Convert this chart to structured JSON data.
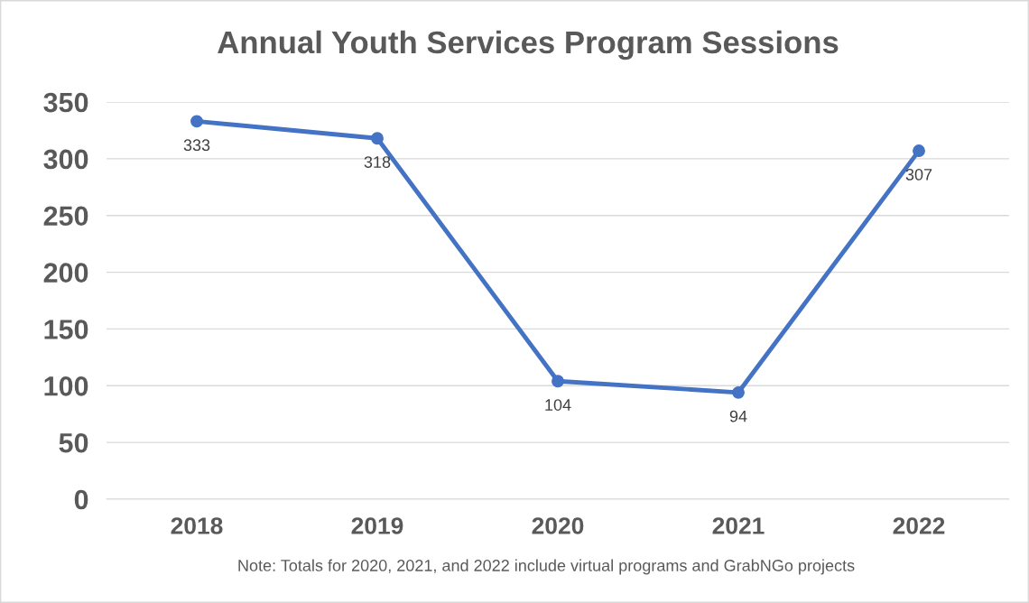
{
  "chart_data": {
    "type": "line",
    "title": "Annual Youth Services Program Sessions",
    "categories": [
      "2018",
      "2019",
      "2020",
      "2021",
      "2022"
    ],
    "series": [
      {
        "color": "#4472c4",
        "values": [
          333,
          318,
          104,
          94,
          307
        ]
      }
    ],
    "ylim": [
      0,
      350
    ],
    "yticks": [
      0,
      50,
      100,
      150,
      200,
      250,
      300,
      350
    ],
    "grid": "y",
    "marker": "circle",
    "line_style": "solid",
    "data_labels": true,
    "legend": false,
    "annotations": [
      "Note: Totals for 2020, 2021, and 2022 include virtual programs and GrabNGo projects"
    ]
  }
}
